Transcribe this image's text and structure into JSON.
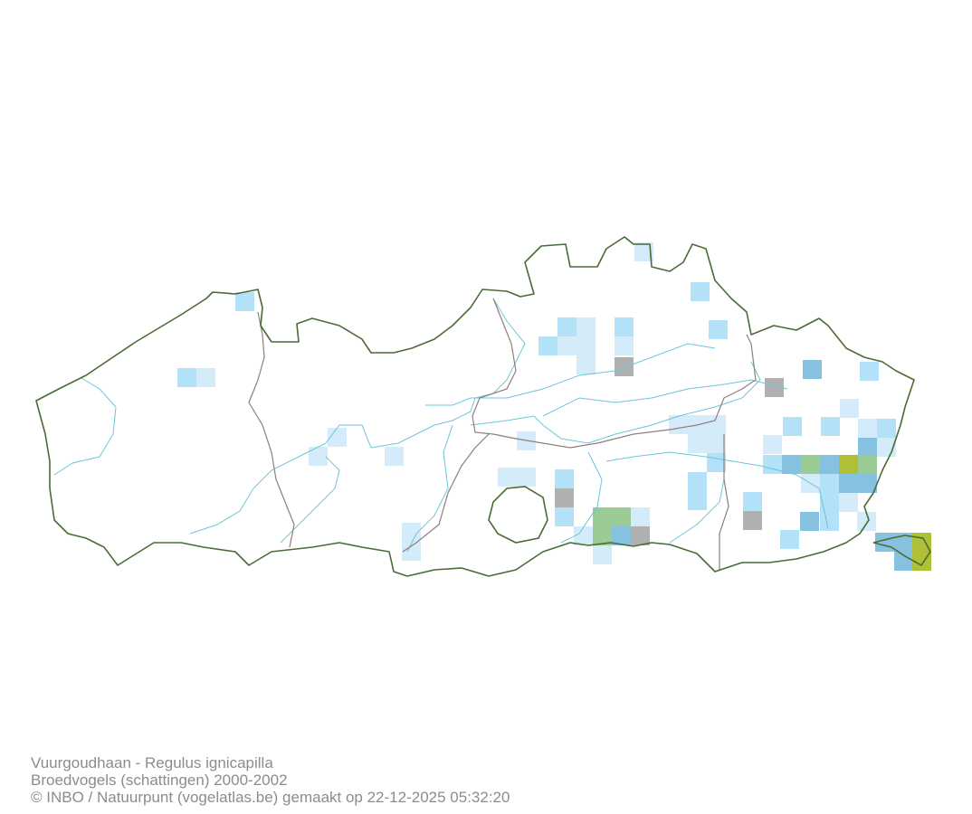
{
  "caption": {
    "species": "Vuurgoudhaan - Regulus ignicapilla",
    "dataset": "Broedvogels (schattingen) 2000-2002",
    "credit": "© INBO / Natuurpunt (vogelatlas.be) gemaakt op 22-12-2025 05:32:20"
  },
  "colors": {
    "class_1": "#d4ebfa",
    "class_2": "#b3e1f8",
    "class_3": "#86c1df",
    "class_4": "#9acb95",
    "class_5": "#afc036",
    "no_data": "#b0b0b0",
    "region_border": "#4a6b35",
    "province_border": "#8f7f7a",
    "river": "#6cc6d8"
  },
  "map": {
    "region": "Vlaanderen",
    "grid_classes": [
      "class_1",
      "class_2",
      "class_3",
      "class_4",
      "class_5",
      "no_data"
    ]
  }
}
